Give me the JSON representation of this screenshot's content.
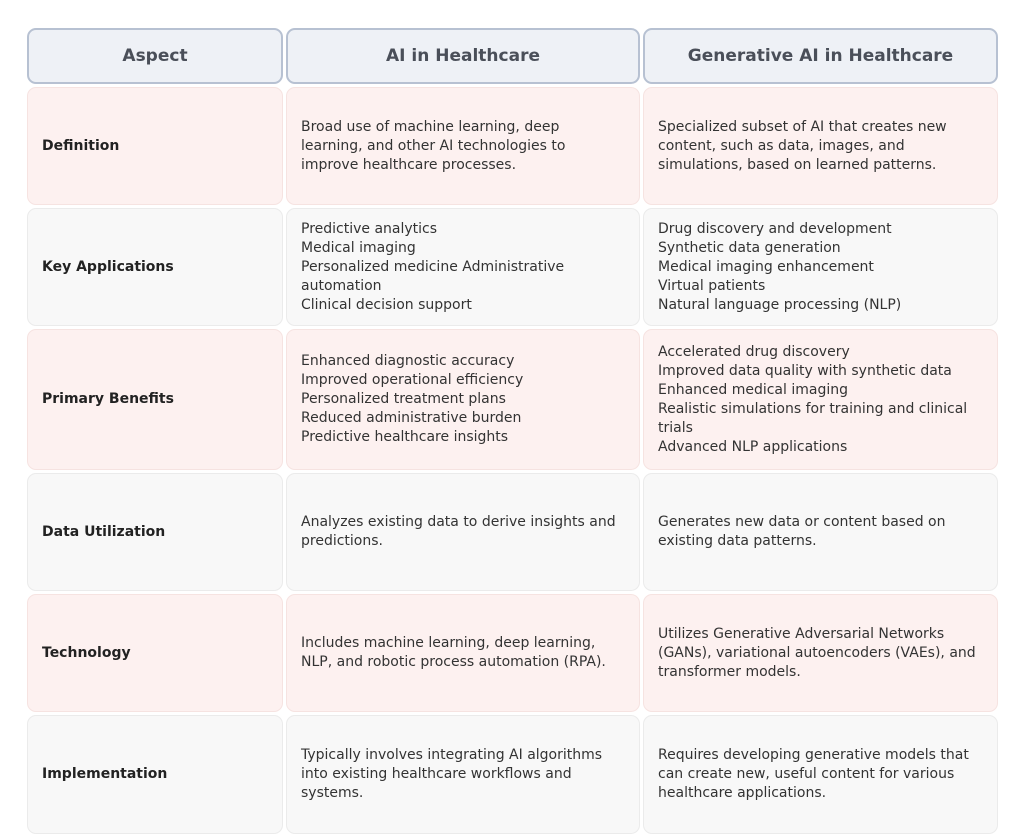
{
  "table": {
    "header": [
      "Aspect",
      "AI in Healthcare",
      "Generative AI in Healthcare"
    ],
    "rows": [
      [
        "Definition",
        [
          "Broad use of machine learning, deep learning, and other AI technologies to improve healthcare processes."
        ],
        [
          "Specialized subset of AI that creates new content, such as data, images, and simulations, based on learned patterns."
        ]
      ],
      [
        "Key Applications",
        [
          "Predictive analytics",
          "Medical imaging",
          "Personalized medicine Administrative automation",
          "Clinical decision support"
        ],
        [
          "Drug discovery and development",
          "Synthetic data generation",
          "Medical imaging enhancement",
          "Virtual patients",
          "Natural language processing (NLP)"
        ]
      ],
      [
        "Primary Benefits",
        [
          "Enhanced diagnostic accuracy",
          "Improved operational efficiency",
          "Personalized treatment plans",
          "Reduced administrative burden",
          "Predictive healthcare insights"
        ],
        [
          "Accelerated drug discovery",
          "Improved data quality with synthetic data",
          "Enhanced medical imaging",
          "Realistic simulations for training and clinical trials",
          "Advanced NLP applications"
        ]
      ],
      [
        "Data Utilization",
        [
          "Analyzes existing data to derive insights and predictions."
        ],
        [
          "Generates new data or content based on existing data patterns."
        ]
      ],
      [
        "Technology",
        [
          "Includes machine learning, deep learning, NLP, and robotic process automation (RPA)."
        ],
        [
          "Utilizes Generative Adversarial Networks (GANs), variational autoencoders (VAEs), and transformer models."
        ]
      ],
      [
        "Implementation",
        [
          "Typically involves integrating AI algorithms into existing healthcare workflows and systems."
        ],
        [
          "Requires developing generative models that can create new, useful content for various healthcare applications."
        ]
      ]
    ]
  }
}
